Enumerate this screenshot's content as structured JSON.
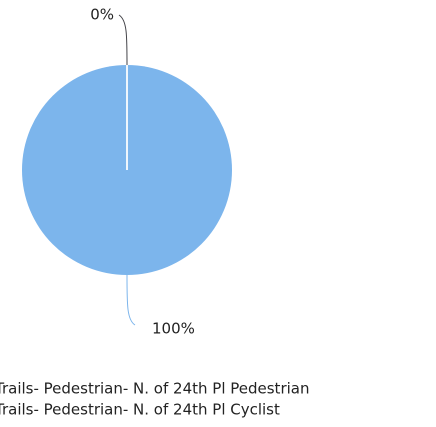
{
  "chart_data": {
    "type": "pie",
    "categories": [
      "Trails- Pedestrian- N. of 24th Pl Pedestrian",
      "Trails- Pedestrian- N. of 24th Pl Cyclist"
    ],
    "values": [
      0,
      100
    ],
    "value_labels": [
      "0%",
      "100%"
    ],
    "colors": [
      "#434348",
      "#7cb5ec"
    ],
    "legend": "bottom"
  }
}
